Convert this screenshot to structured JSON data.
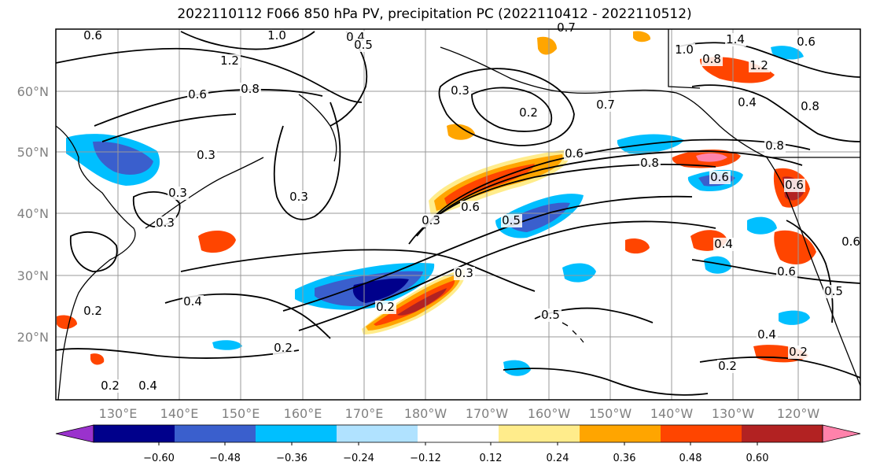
{
  "title": "2022110112 F066 850 hPa PV, precipitation PC (2022110412 - 2022110512)",
  "map": {
    "lon_labels": [
      "130°E",
      "140°E",
      "150°E",
      "160°E",
      "170°E",
      "180°W",
      "170°W",
      "160°W",
      "150°W",
      "140°W",
      "130°W",
      "120°W"
    ],
    "lat_labels": [
      "60°N",
      "50°N",
      "40°N",
      "30°N",
      "20°N"
    ],
    "contour_labels": [
      "0.6",
      "1.0",
      "0.4",
      "0.5",
      "1.2",
      "0.8",
      "0.6",
      "0.3",
      "0.3",
      "0.3",
      "0.3",
      "0.2",
      "0.3",
      "0.6",
      "0.2",
      "0.7",
      "0.7",
      "0.5",
      "0.8",
      "0.6",
      "0.4",
      "0.3",
      "0.2",
      "0.4",
      "0.2",
      "0.2",
      "0.5",
      "0.3",
      "0.8",
      "1.0",
      "1.2",
      "1.4",
      "0.6",
      "0.8",
      "0.4",
      "0.6",
      "0.4",
      "0.6",
      "0.5",
      "0.2",
      "0.2",
      "0.6",
      "0.8",
      "0.4",
      "0.6"
    ]
  },
  "colorbar": {
    "ticks": [
      "−0.60",
      "−0.48",
      "−0.36",
      "−0.24",
      "−0.12",
      "0.12",
      "0.24",
      "0.36",
      "0.48",
      "0.60"
    ],
    "colors": [
      "#9a32cd",
      "#00008b",
      "#3a5fcd",
      "#00bfff",
      "#b0e2ff",
      "#ffffff",
      "#ffec8b",
      "#ffa500",
      "#ff4500",
      "#b22222",
      "#ff82ab"
    ]
  }
}
